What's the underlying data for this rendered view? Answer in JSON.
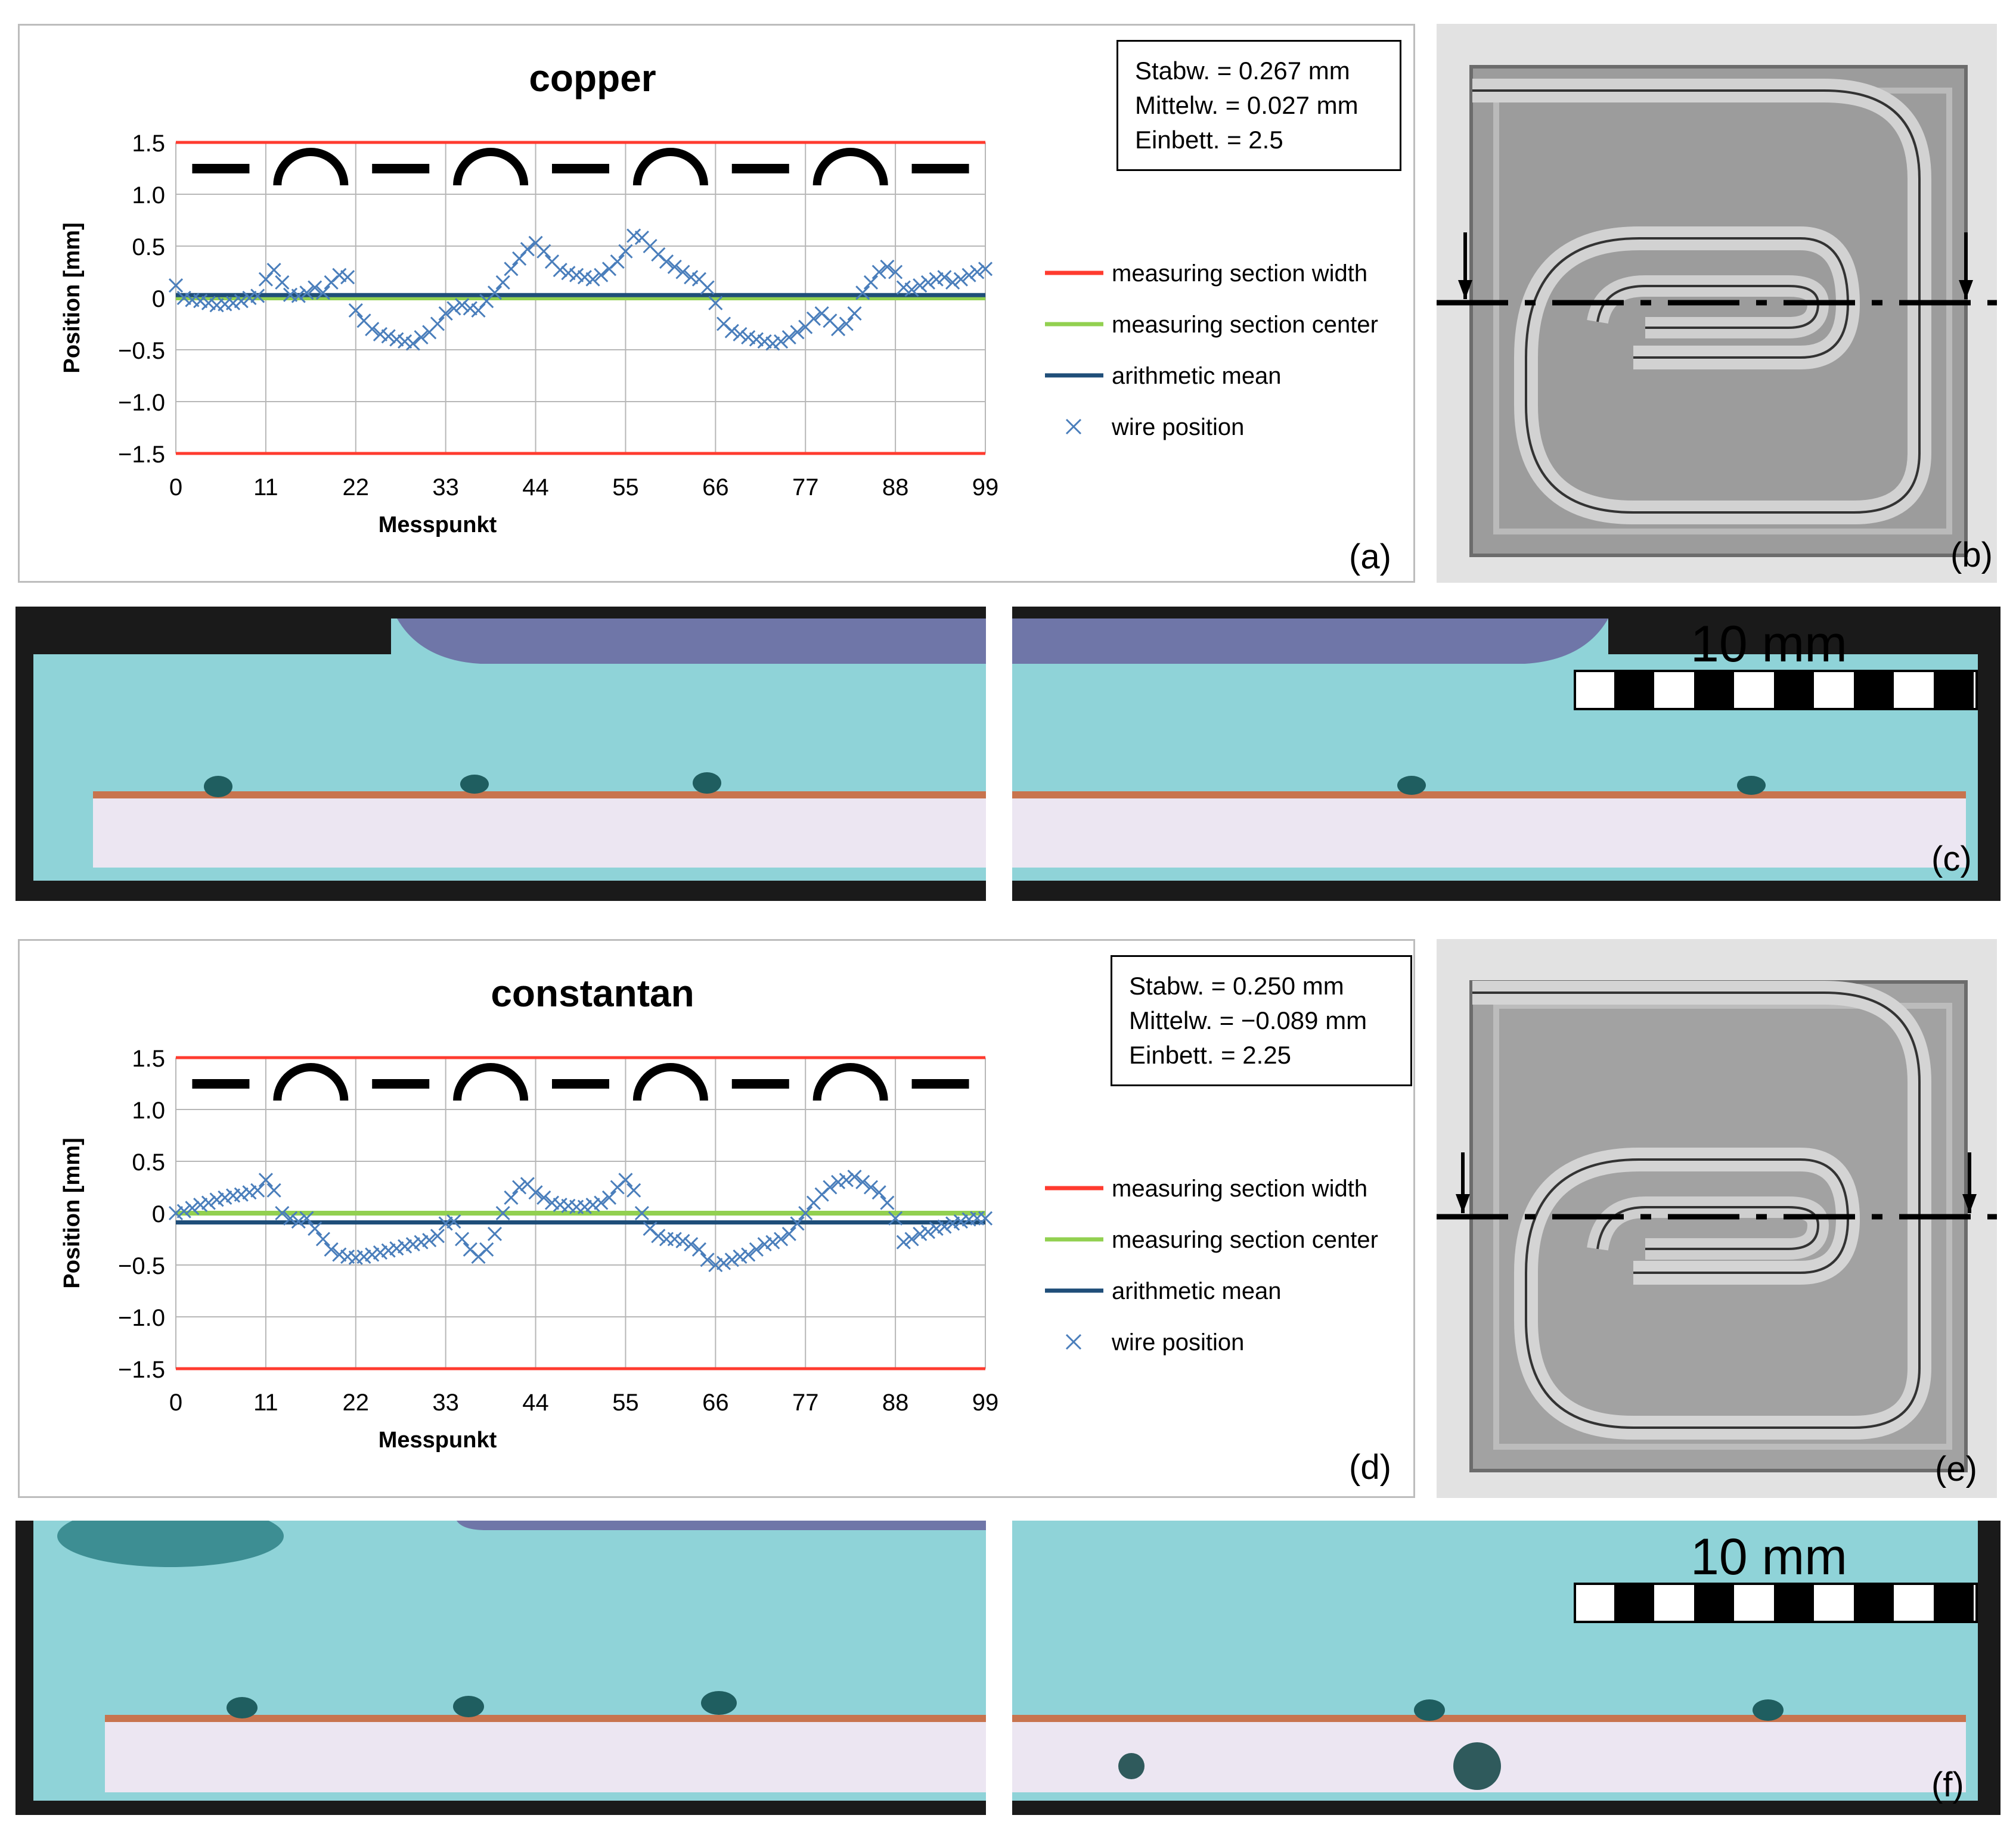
{
  "panels": {
    "a": "(a)",
    "b": "(b)",
    "c": "(c)",
    "d": "(d)",
    "e": "(e)",
    "f": "(f)"
  },
  "scalebar": {
    "label": "10 mm"
  },
  "legend": {
    "width": "measuring section width",
    "center": "measuring section center",
    "mean": "arithmetic mean",
    "wire": "wire position"
  },
  "colors": {
    "width": "#ff3b2f",
    "center": "#92d050",
    "mean": "#1f4e79",
    "wire": "#4a7ebb",
    "resin": "#8fd3d8",
    "base": "#ece6f2",
    "copper_strip": "#c8744e"
  },
  "chart_data": [
    {
      "type": "scatter",
      "title": "copper",
      "xlabel": "Messpunkt",
      "ylabel": "Position [mm]",
      "xlim": [
        0,
        99
      ],
      "ylim": [
        -1.5,
        1.5
      ],
      "xticks": [
        "0",
        "11",
        "22",
        "33",
        "44",
        "55",
        "66",
        "77",
        "88",
        "99"
      ],
      "yticks": [
        "1.5",
        "1.0",
        "0.5",
        "0",
        "−0.5",
        "−1.0",
        "−1.5"
      ],
      "grid": true,
      "legend_position": "right",
      "stats": [
        "Stabw. = 0.267 mm",
        "Mittelw. = 0.027 mm",
        "Einbett. = 2.5"
      ],
      "section_width": [
        -1.5,
        1.5
      ],
      "section_center": 0,
      "mean": 0.027,
      "segments": [
        "straight",
        "arc",
        "straight",
        "arc",
        "straight",
        "arc",
        "straight",
        "arc",
        "straight"
      ],
      "series": [
        {
          "name": "wire position",
          "x": [
            0,
            1,
            2,
            3,
            4,
            5,
            6,
            7,
            8,
            9,
            10,
            11,
            12,
            13,
            14,
            15,
            16,
            17,
            18,
            19,
            20,
            21,
            22,
            23,
            24,
            25,
            26,
            27,
            28,
            29,
            30,
            31,
            32,
            33,
            34,
            35,
            36,
            37,
            38,
            39,
            40,
            41,
            42,
            43,
            44,
            45,
            46,
            47,
            48,
            49,
            50,
            51,
            52,
            53,
            54,
            55,
            56,
            57,
            58,
            59,
            60,
            61,
            62,
            63,
            64,
            65,
            66,
            67,
            68,
            69,
            70,
            71,
            72,
            73,
            74,
            75,
            76,
            77,
            78,
            79,
            80,
            81,
            82,
            83,
            84,
            85,
            86,
            87,
            88,
            89,
            90,
            91,
            92,
            93,
            94,
            95,
            96,
            97,
            98,
            99
          ],
          "values": [
            0.12,
            0.0,
            -0.02,
            -0.03,
            -0.05,
            -0.07,
            -0.06,
            -0.05,
            -0.03,
            0.0,
            0.02,
            0.18,
            0.27,
            0.15,
            0.03,
            0.02,
            0.05,
            0.1,
            0.05,
            0.15,
            0.22,
            0.2,
            -0.12,
            -0.22,
            -0.3,
            -0.35,
            -0.37,
            -0.4,
            -0.42,
            -0.44,
            -0.38,
            -0.33,
            -0.25,
            -0.15,
            -0.1,
            -0.07,
            -0.1,
            -0.12,
            -0.03,
            0.05,
            0.15,
            0.28,
            0.38,
            0.47,
            0.53,
            0.45,
            0.35,
            0.27,
            0.24,
            0.22,
            0.2,
            0.18,
            0.22,
            0.28,
            0.35,
            0.45,
            0.6,
            0.58,
            0.5,
            0.42,
            0.35,
            0.3,
            0.25,
            0.2,
            0.18,
            0.1,
            -0.05,
            -0.25,
            -0.32,
            -0.35,
            -0.38,
            -0.4,
            -0.42,
            -0.44,
            -0.42,
            -0.38,
            -0.33,
            -0.28,
            -0.2,
            -0.15,
            -0.22,
            -0.3,
            -0.25,
            -0.15,
            0.05,
            0.15,
            0.25,
            0.3,
            0.25,
            0.1,
            0.08,
            0.12,
            0.15,
            0.18,
            0.2,
            0.15,
            0.18,
            0.22,
            0.25,
            0.28
          ]
        }
      ]
    },
    {
      "type": "scatter",
      "title": "constantan",
      "xlabel": "Messpunkt",
      "ylabel": "Position [mm]",
      "xlim": [
        0,
        99
      ],
      "ylim": [
        -1.5,
        1.5
      ],
      "xticks": [
        "0",
        "11",
        "22",
        "33",
        "44",
        "55",
        "66",
        "77",
        "88",
        "99"
      ],
      "yticks": [
        "1.5",
        "1.0",
        "0.5",
        "0",
        "−0.5",
        "−1.0",
        "−1.5"
      ],
      "grid": true,
      "legend_position": "right",
      "stats": [
        "Stabw. = 0.250 mm",
        "Mittelw. = −0.089 mm",
        "Einbett. = 2.25"
      ],
      "section_width": [
        -1.5,
        1.5
      ],
      "section_center": 0,
      "mean": -0.089,
      "segments": [
        "straight",
        "arc",
        "straight",
        "arc",
        "straight",
        "arc",
        "straight",
        "arc",
        "straight"
      ],
      "series": [
        {
          "name": "wire position",
          "x": [
            0,
            1,
            2,
            3,
            4,
            5,
            6,
            7,
            8,
            9,
            10,
            11,
            12,
            13,
            14,
            15,
            16,
            17,
            18,
            19,
            20,
            21,
            22,
            23,
            24,
            25,
            26,
            27,
            28,
            29,
            30,
            31,
            32,
            33,
            34,
            35,
            36,
            37,
            38,
            39,
            40,
            41,
            42,
            43,
            44,
            45,
            46,
            47,
            48,
            49,
            50,
            51,
            52,
            53,
            54,
            55,
            56,
            57,
            58,
            59,
            60,
            61,
            62,
            63,
            64,
            65,
            66,
            67,
            68,
            69,
            70,
            71,
            72,
            73,
            74,
            75,
            76,
            77,
            78,
            79,
            80,
            81,
            82,
            83,
            84,
            85,
            86,
            87,
            88,
            89,
            90,
            91,
            92,
            93,
            94,
            95,
            96,
            97,
            98,
            99
          ],
          "values": [
            0.0,
            0.02,
            0.05,
            0.08,
            0.1,
            0.13,
            0.15,
            0.17,
            0.18,
            0.2,
            0.22,
            0.32,
            0.22,
            0.0,
            -0.05,
            -0.08,
            -0.05,
            -0.15,
            -0.25,
            -0.35,
            -0.4,
            -0.42,
            -0.43,
            -0.42,
            -0.4,
            -0.38,
            -0.36,
            -0.34,
            -0.32,
            -0.3,
            -0.28,
            -0.26,
            -0.22,
            -0.1,
            -0.08,
            -0.25,
            -0.35,
            -0.42,
            -0.35,
            -0.2,
            0.0,
            0.15,
            0.25,
            0.28,
            0.2,
            0.15,
            0.1,
            0.08,
            0.07,
            0.06,
            0.06,
            0.08,
            0.1,
            0.15,
            0.25,
            0.32,
            0.22,
            0.0,
            -0.15,
            -0.22,
            -0.25,
            -0.25,
            -0.27,
            -0.3,
            -0.35,
            -0.45,
            -0.5,
            -0.48,
            -0.45,
            -0.42,
            -0.4,
            -0.35,
            -0.3,
            -0.28,
            -0.25,
            -0.2,
            -0.1,
            0.0,
            0.1,
            0.18,
            0.25,
            0.3,
            0.32,
            0.35,
            0.3,
            0.25,
            0.2,
            0.1,
            -0.05,
            -0.28,
            -0.25,
            -0.2,
            -0.18,
            -0.15,
            -0.13,
            -0.1,
            -0.08,
            -0.06,
            -0.05,
            -0.05
          ]
        }
      ]
    }
  ]
}
